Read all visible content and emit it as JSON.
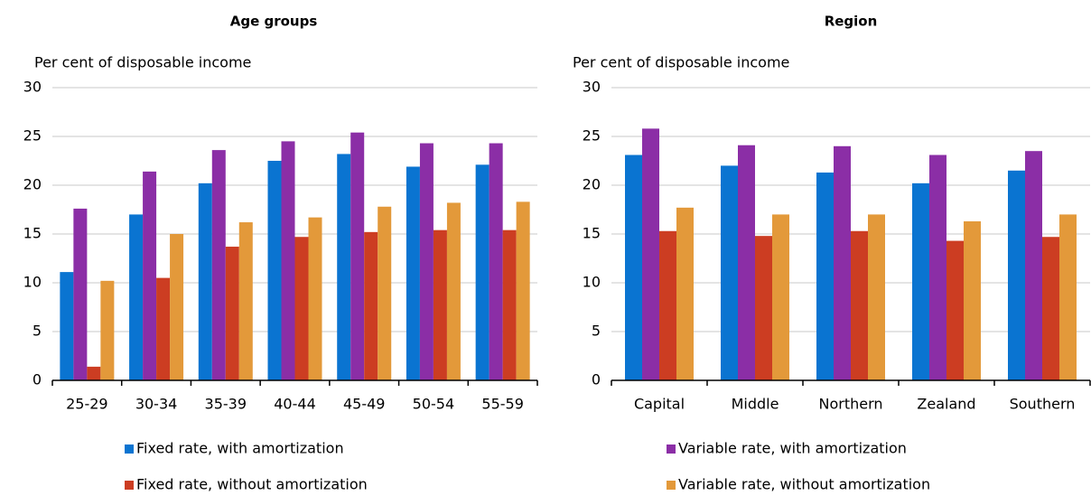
{
  "chart_data": [
    {
      "type": "bar",
      "title": "Age groups",
      "y_label": "Per cent of disposable income",
      "categories": [
        "25-29",
        "30-34",
        "35-39",
        "40-44",
        "45-49",
        "50-54",
        "55-59"
      ],
      "series": [
        {
          "name": "Fixed rate, with amortization",
          "color": "#0a74d1",
          "values": [
            11.1,
            17.0,
            20.2,
            22.5,
            23.2,
            21.9,
            22.1
          ]
        },
        {
          "name": "Variable rate, with amortization",
          "color": "#8b2ea6",
          "values": [
            17.6,
            21.4,
            23.6,
            24.5,
            25.4,
            24.3,
            24.3
          ]
        },
        {
          "name": "Fixed rate, without amortization",
          "color": "#cc3d22",
          "values": [
            1.4,
            10.5,
            13.7,
            14.7,
            15.2,
            15.4,
            15.4
          ]
        },
        {
          "name": "Variable rate, without amortization",
          "color": "#e3993a",
          "values": [
            10.2,
            15.0,
            16.2,
            16.7,
            17.8,
            18.2,
            18.3
          ]
        }
      ],
      "ylim": [
        0,
        30
      ],
      "yticks": [
        0,
        5,
        10,
        15,
        20,
        25,
        30
      ],
      "grid": true
    },
    {
      "type": "bar",
      "title": "Region",
      "y_label": "Per cent of disposable income",
      "categories": [
        "Capital",
        "Middle",
        "Northern",
        "Zealand",
        "Southern"
      ],
      "series": [
        {
          "name": "Fixed rate, with amortization",
          "color": "#0a74d1",
          "values": [
            23.1,
            22.0,
            21.3,
            20.2,
            21.5
          ]
        },
        {
          "name": "Variable rate, with amortization",
          "color": "#8b2ea6",
          "values": [
            25.8,
            24.1,
            24.0,
            23.1,
            23.5
          ]
        },
        {
          "name": "Fixed rate, without amortization",
          "color": "#cc3d22",
          "values": [
            15.3,
            14.8,
            15.3,
            14.3,
            14.7
          ]
        },
        {
          "name": "Variable rate, without amortization",
          "color": "#e3993a",
          "values": [
            17.7,
            17.0,
            17.0,
            16.3,
            17.0
          ]
        }
      ],
      "ylim": [
        0,
        30
      ],
      "yticks": [
        0,
        5,
        10,
        15,
        20,
        25,
        30
      ],
      "grid": true
    }
  ]
}
